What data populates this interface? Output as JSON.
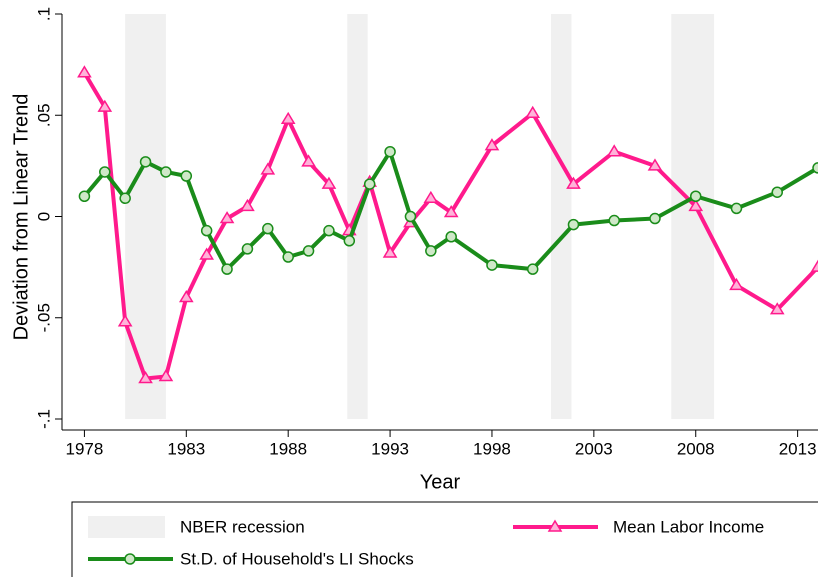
{
  "chart_data": {
    "type": "line",
    "x_label": "Year",
    "y_label": "Deviation from Linear Trend",
    "x": [
      1978,
      1979,
      1980,
      1981,
      1982,
      1983,
      1984,
      1985,
      1986,
      1987,
      1988,
      1989,
      1990,
      1991,
      1992,
      1993,
      1994,
      1995,
      1996,
      1998,
      2000,
      2002,
      2004,
      2006,
      2008,
      2010,
      2012,
      2014
    ],
    "shading": {
      "name": "NBER recession",
      "color": "#f0f0f0",
      "spans": [
        [
          1980,
          1982
        ],
        [
          1990.9,
          1991.9
        ],
        [
          2000.9,
          2001.9
        ],
        [
          2006.8,
          2008.9
        ]
      ]
    },
    "series": [
      {
        "name": "Mean Labor Income",
        "color": "#ff1a8c",
        "marker": "triangle",
        "values": [
          0.071,
          0.054,
          -0.052,
          -0.08,
          -0.079,
          -0.04,
          -0.019,
          -0.001,
          0.005,
          0.023,
          0.048,
          0.027,
          0.016,
          -0.007,
          0.017,
          -0.018,
          -0.003,
          0.009,
          0.002,
          0.035,
          0.051,
          0.016,
          0.032,
          0.025,
          0.005,
          -0.034,
          -0.046,
          -0.025
        ]
      },
      {
        "name": "St.D. of Household's LI Shocks",
        "color": "#1a8c1a",
        "marker": "circle",
        "values": [
          0.01,
          0.022,
          0.009,
          0.027,
          0.022,
          0.02,
          -0.007,
          -0.026,
          -0.016,
          -0.006,
          -0.02,
          -0.017,
          -0.007,
          -0.012,
          0.016,
          0.032,
          0.0,
          -0.017,
          -0.01,
          -0.024,
          -0.026,
          -0.004,
          -0.002,
          -0.001,
          0.01,
          0.004,
          0.012,
          0.024
        ]
      }
    ],
    "xlim": [
      1976.9,
      2014
    ],
    "xticks": [
      1978,
      1983,
      1988,
      1993,
      1998,
      2003,
      2008,
      2013
    ],
    "ylim": [
      -0.1,
      0.1
    ],
    "yticks": [
      {
        "value": -0.1,
        "label": "-.1"
      },
      {
        "value": -0.05,
        "label": "-.05"
      },
      0,
      {
        "value": 0.05,
        "label": ".05"
      },
      {
        "value": 0.1,
        "label": ".1"
      }
    ],
    "grid": false,
    "legend": "bottom"
  }
}
